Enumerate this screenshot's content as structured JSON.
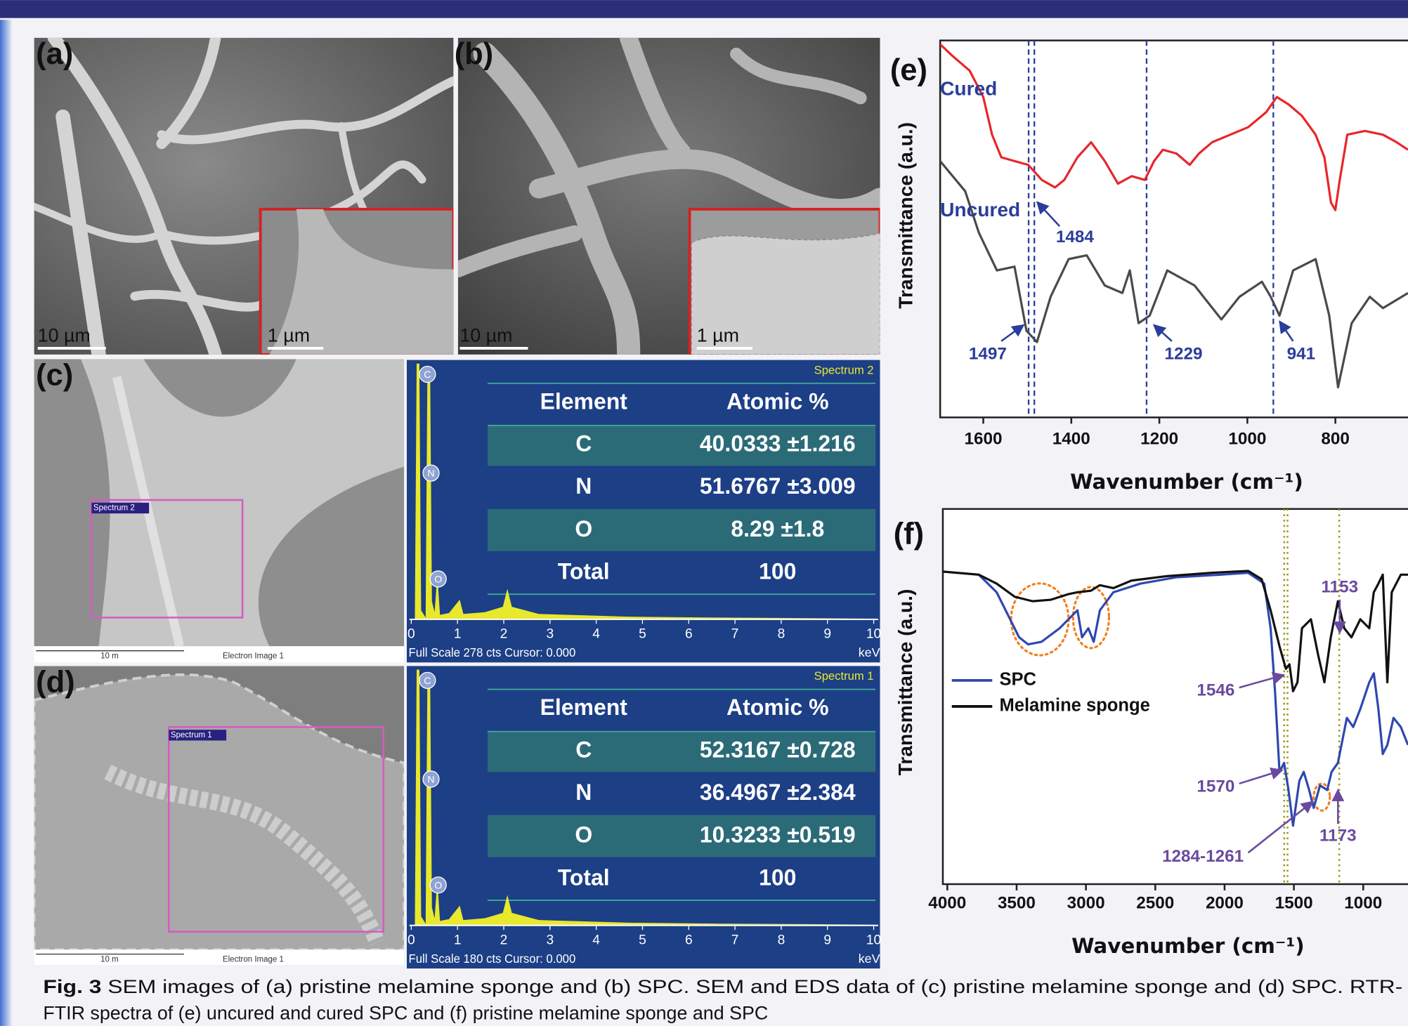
{
  "panels": {
    "a": {
      "label": "(a)",
      "scale_bar": "10 µm",
      "inset_scale_bar": "1 µm"
    },
    "b": {
      "label": "(b)",
      "scale_bar": "10 µm",
      "inset_scale_bar": "1 µm"
    },
    "c": {
      "label": "(c)",
      "scale_bar": "10 m",
      "image_name": "Electron Image 1",
      "spectrum_box": "Spectrum 2"
    },
    "d": {
      "label": "(d)",
      "scale_bar": "10 m",
      "image_name": "Electron Image 1",
      "spectrum_box": "Spectrum 1"
    }
  },
  "eds": [
    {
      "spectrum": "Spectrum 2",
      "columns": [
        "Element",
        "Atomic %"
      ],
      "rows": [
        [
          "C",
          "40.0333 ±1.216"
        ],
        [
          "N",
          "51.6767 ±3.009"
        ],
        [
          "O",
          "8.29 ±1.8"
        ],
        [
          "Total",
          "100"
        ]
      ],
      "peaks": [
        "C",
        "N",
        "O"
      ],
      "xticks": [
        0,
        1,
        2,
        3,
        4,
        5,
        6,
        7,
        8,
        9,
        10
      ],
      "unit": "keV",
      "footer": "Full Scale 278 cts Cursor: 0.000"
    },
    {
      "spectrum": "Spectrum 1",
      "columns": [
        "Element",
        "Atomic %"
      ],
      "rows": [
        [
          "C",
          "52.3167 ±0.728"
        ],
        [
          "N",
          "36.4967 ±2.384"
        ],
        [
          "O",
          "10.3233 ±0.519"
        ],
        [
          "Total",
          "100"
        ]
      ],
      "peaks": [
        "C",
        "N",
        "O"
      ],
      "xticks": [
        0,
        1,
        2,
        3,
        4,
        5,
        6,
        7,
        8,
        9,
        10
      ],
      "unit": "keV",
      "footer": "Full Scale 180 cts Cursor: 0.000"
    }
  ],
  "chart_data": [
    {
      "type": "line",
      "panel_label": "(e)",
      "ylabel": "Transmittance (a.u.)",
      "xlabel": "Wavenumber (cm⁻¹)",
      "xlim": [
        1698,
        635
      ],
      "xticks": [
        1600,
        1400,
        1200,
        1000,
        800
      ],
      "ylim": [
        0,
        100
      ],
      "series": [
        {
          "name": "Cured",
          "color": "#e8262a",
          "x": [
            1698,
            1671,
            1631,
            1600,
            1580,
            1559,
            1529,
            1498,
            1467,
            1437,
            1416,
            1386,
            1355,
            1324,
            1294,
            1263,
            1233,
            1212,
            1192,
            1161,
            1131,
            1110,
            1080,
            1039,
            998,
            957,
            933,
            906,
            876,
            845,
            825,
            810,
            800,
            790,
            773,
            733,
            692,
            661,
            635
          ],
          "values": [
            99,
            96,
            92,
            85,
            75,
            69,
            68,
            67,
            63,
            61,
            63,
            69,
            73,
            68,
            62,
            64,
            63,
            68,
            71,
            70,
            67,
            70,
            73,
            75,
            77,
            81,
            85,
            83,
            80,
            75,
            69,
            57,
            55,
            63,
            75,
            76,
            75,
            73,
            71
          ]
        },
        {
          "name": "Uncured",
          "color": "#4a4a4a",
          "x": [
            1698,
            1641,
            1610,
            1569,
            1529,
            1502,
            1478,
            1447,
            1406,
            1365,
            1324,
            1284,
            1267,
            1247,
            1222,
            1182,
            1120,
            1059,
            1018,
            967,
            947,
            927,
            896,
            845,
            814,
            794,
            763,
            722,
            692,
            635
          ],
          "values": [
            68,
            60,
            49,
            39,
            40,
            23,
            20,
            32,
            42,
            43,
            35,
            33,
            39,
            25,
            27,
            39,
            35,
            26,
            32,
            36,
            32,
            27,
            39,
            42,
            27,
            8,
            25,
            32,
            29,
            33
          ]
        }
      ],
      "peaks": [
        1497,
        1484,
        1229,
        941
      ]
    },
    {
      "type": "line",
      "panel_label": "(f)",
      "ylabel": "Transmittance (a.u.)",
      "xlabel": "Wavenumber (cm⁻¹)",
      "xlim": [
        4032,
        677
      ],
      "xticks": [
        4000,
        3500,
        3000,
        2500,
        2000,
        1500,
        1000
      ],
      "ylim": [
        0,
        100
      ],
      "series": [
        {
          "name": "SPC",
          "color": "#2f47b0",
          "x": [
            4032,
            3773,
            3644,
            3547,
            3482,
            3417,
            3320,
            3190,
            3061,
            3028,
            2983,
            2944,
            2899,
            2802,
            2607,
            2348,
            2025,
            1830,
            1714,
            1668,
            1636,
            1604,
            1571,
            1539,
            1506,
            1461,
            1429,
            1390,
            1357,
            1312,
            1260,
            1228,
            1183,
            1118,
            1072,
            1021,
            956,
            924,
            891,
            859,
            826,
            781,
            729,
            677
          ],
          "values": [
            83.3,
            82.5,
            77.8,
            70.6,
            65.8,
            63.9,
            64.6,
            68.2,
            73.0,
            65.8,
            68.2,
            64.6,
            73.0,
            77.8,
            80.1,
            81.8,
            82.5,
            83.0,
            80.1,
            68.2,
            51.4,
            29.9,
            32.3,
            25.1,
            15.6,
            27.5,
            29.9,
            25.1,
            20.3,
            26.3,
            25.1,
            29.9,
            32.3,
            44.3,
            41.9,
            46.7,
            53.8,
            56.2,
            46.7,
            34.7,
            37.1,
            44.3,
            41.9,
            37.1
          ]
        },
        {
          "name": "Melamine sponge",
          "color": "#111111",
          "x": [
            4032,
            3773,
            3644,
            3514,
            3385,
            3255,
            3126,
            3061,
            2964,
            2899,
            2802,
            2672,
            2413,
            2089,
            1830,
            1733,
            1668,
            1604,
            1558,
            1532,
            1506,
            1474,
            1442,
            1377,
            1325,
            1280,
            1234,
            1183,
            1137,
            1085,
            1021,
            956,
            924,
            891,
            859,
            826,
            794,
            729,
            677
          ],
          "values": [
            83.3,
            82.5,
            80.1,
            76.6,
            75.4,
            75.8,
            77.3,
            77.8,
            78.2,
            79.7,
            78.9,
            80.9,
            82.1,
            83.0,
            83.5,
            81.3,
            73.0,
            63.4,
            57.4,
            58.6,
            51.4,
            53.8,
            68.2,
            70.6,
            61.0,
            53.8,
            65.8,
            75.4,
            68.2,
            65.8,
            70.6,
            68.2,
            77.8,
            80.1,
            82.5,
            53.8,
            77.8,
            82.5,
            82.5
          ]
        }
      ],
      "peaks": [
        1153,
        1546,
        1570,
        1173
      ],
      "range_label": "1284-1261"
    }
  ],
  "caption": {
    "label": "Fig. 3",
    "lines": [
      " SEM images of (a) pristine melamine sponge and (b) SPC. SEM and EDS data of (c) pristine melamine sponge and (d) SPC. RTR-",
      "FTIR spectra of (e) uncured and cured SPC and (f) pristine melamine sponge and SPC"
    ]
  }
}
